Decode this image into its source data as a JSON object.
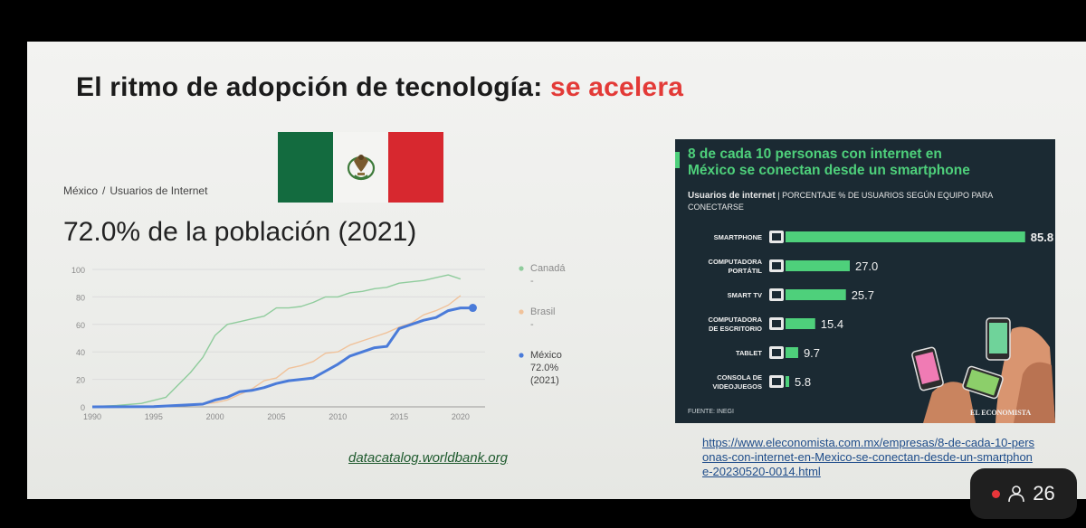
{
  "slide": {
    "title_main": "El ritmo de adopción de tecnología",
    "title_colon": ":",
    "title_accent": "se acelera",
    "accent_color": "#e33a37"
  },
  "breadcrumb": {
    "country": "México",
    "separator": "/",
    "indicator": "Usuarios de Internet"
  },
  "big_stat": "72.0% de la población (2021)",
  "chart_data": {
    "type": "line",
    "x_ticks": [
      "1990",
      "1995",
      "2000",
      "2005",
      "2010",
      "2015",
      "2020"
    ],
    "y_ticks": [
      "0",
      "20",
      "40",
      "60",
      "80",
      "100"
    ],
    "xlim": [
      1990,
      2022
    ],
    "ylim": [
      0,
      100
    ],
    "series": [
      {
        "name": "Canadá",
        "legend_lines": [
          "Canadá",
          "-"
        ],
        "color": "#8fcc9c",
        "x": [
          1990,
          1992,
          1994,
          1996,
          1998,
          1999,
          2000,
          2001,
          2002,
          2003,
          2004,
          2005,
          2006,
          2007,
          2008,
          2009,
          2010,
          2011,
          2012,
          2013,
          2014,
          2015,
          2016,
          2017,
          2018,
          2019,
          2020
        ],
        "y": [
          0.2,
          1,
          2.5,
          7,
          25,
          36,
          52,
          60,
          62,
          64,
          66,
          72,
          72,
          73,
          76,
          80,
          80,
          83,
          84,
          86,
          87,
          90,
          91,
          92,
          94,
          96,
          93
        ]
      },
      {
        "name": "Brasil",
        "legend_lines": [
          "Brasil",
          "-"
        ],
        "color": "#f0c29a",
        "x": [
          1990,
          1995,
          1998,
          2000,
          2001,
          2002,
          2003,
          2004,
          2005,
          2006,
          2007,
          2008,
          2009,
          2010,
          2011,
          2012,
          2013,
          2014,
          2015,
          2016,
          2017,
          2018,
          2019,
          2020
        ],
        "y": [
          0,
          0.1,
          1.5,
          3,
          5,
          9,
          13,
          19,
          21,
          28,
          30,
          33,
          39,
          40,
          45,
          48,
          51,
          54,
          58,
          61,
          67,
          70,
          74,
          81
        ]
      },
      {
        "name": "México",
        "legend_lines": [
          "México",
          "72.0%",
          "(2021)"
        ],
        "color": "#4a7bd9",
        "x": [
          1990,
          1995,
          1999,
          2000,
          2001,
          2002,
          2003,
          2004,
          2005,
          2006,
          2007,
          2008,
          2009,
          2010,
          2011,
          2012,
          2013,
          2014,
          2015,
          2016,
          2017,
          2018,
          2019,
          2020,
          2021
        ],
        "y": [
          0,
          0.1,
          2,
          5,
          7,
          11,
          12,
          14,
          17,
          19,
          20,
          21,
          26,
          31,
          37,
          40,
          43,
          44,
          57,
          60,
          63,
          65,
          70,
          72,
          72
        ]
      }
    ]
  },
  "source_left": "datacatalog.worldbank.org",
  "infographic": {
    "headline_lines": [
      "8 de cada 10 personas con internet en",
      "México se conectan desde un smartphone"
    ],
    "subtitle_bold": "Usuarios de internet",
    "subtitle_sep": "|",
    "subtitle_rest": "PORCENTAJE % DE USUARIOS SEGÚN EQUIPO PARA CONECTARSE",
    "accent_color": "#4ed07b",
    "bars": [
      {
        "label_lines": [
          "SMARTPHONE"
        ],
        "value": 85.8,
        "value_label": "85.8"
      },
      {
        "label_lines": [
          "COMPUTADORA",
          "PORTÁTIL"
        ],
        "value": 27.0,
        "value_label": "27.0"
      },
      {
        "label_lines": [
          "SMART TV"
        ],
        "value": 25.7,
        "value_label": "25.7"
      },
      {
        "label_lines": [
          "COMPUTADORA",
          "DE ESCRITORIO"
        ],
        "value": 15.4,
        "value_label": "15.4"
      },
      {
        "label_lines": [
          "TABLET"
        ],
        "value": 9.7,
        "value_label": "9.7"
      },
      {
        "label_lines": [
          "CONSOLA DE",
          "VIDEOJUEGOS"
        ],
        "value": 5.8,
        "value_label": "5.8"
      }
    ],
    "source": "FUENTE: INEGI",
    "brand": "EL ECONOMISTA"
  },
  "source_right": "https://www.eleconomista.com.mx/empresas/8-de-cada-10-personas-con-internet-en-Mexico-se-conectan-desde-un-smartphone-20230520-0014.html",
  "participants": {
    "count": "26",
    "icon": "person-icon"
  }
}
